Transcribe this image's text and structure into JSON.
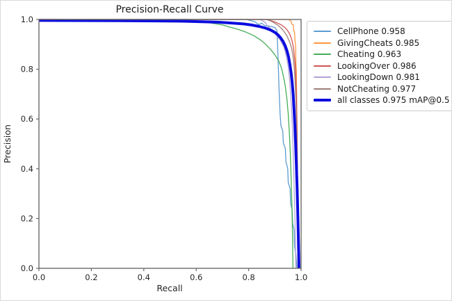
{
  "figure": {
    "background": "#ffffff",
    "frame_color": "#6a6a6a"
  },
  "chart_data": {
    "type": "line",
    "title": "Precision-Recall Curve",
    "xlabel": "Recall",
    "ylabel": "Precision",
    "xlim": [
      0.0,
      1.0
    ],
    "ylim": [
      0.0,
      1.0
    ],
    "xticks": [
      "0.0",
      "0.2",
      "0.4",
      "0.6",
      "0.8",
      "1.0"
    ],
    "yticks": [
      "0.0",
      "0.2",
      "0.4",
      "0.6",
      "0.8",
      "1.0"
    ],
    "grid": false,
    "legend_position": "outside upper right",
    "series": [
      {
        "name": "CellPhone 0.958",
        "color": "#5b9bd0",
        "lw": 1.3,
        "points": [
          [
            0,
            1
          ],
          [
            0.79,
            1
          ],
          [
            0.81,
            0.995
          ],
          [
            0.825,
            0.99
          ],
          [
            0.838,
            0.979
          ],
          [
            0.85,
            0.985
          ],
          [
            0.862,
            0.975
          ],
          [
            0.88,
            0.973
          ],
          [
            0.9,
            0.968
          ],
          [
            0.908,
            0.955
          ],
          [
            0.912,
            0.85
          ],
          [
            0.916,
            0.72
          ],
          [
            0.92,
            0.62
          ],
          [
            0.923,
            0.573
          ],
          [
            0.93,
            0.552
          ],
          [
            0.932,
            0.505
          ],
          [
            0.94,
            0.48
          ],
          [
            0.942,
            0.43
          ],
          [
            0.949,
            0.4
          ],
          [
            0.951,
            0.345
          ],
          [
            0.958,
            0.32
          ],
          [
            0.96,
            0.26
          ],
          [
            0.966,
            0.235
          ],
          [
            0.968,
            0.18
          ],
          [
            0.973,
            0.155
          ],
          [
            0.975,
            0.09
          ],
          [
            0.98,
            0.055
          ],
          [
            0.984,
            0
          ]
        ]
      },
      {
        "name": "GivingCheats 0.985",
        "color": "#ff9740",
        "lw": 1.3,
        "points": [
          [
            0,
            1
          ],
          [
            0.952,
            1
          ],
          [
            0.956,
            0.997
          ],
          [
            0.962,
            0.993
          ],
          [
            0.964,
            0.982
          ],
          [
            0.97,
            0.978
          ],
          [
            0.972,
            0.955
          ],
          [
            0.975,
            0.948
          ],
          [
            0.977,
            0.91
          ],
          [
            0.979,
            0.897
          ],
          [
            0.98,
            0.83
          ],
          [
            0.982,
            0.79
          ],
          [
            0.983,
            0.7
          ],
          [
            0.984,
            0.6
          ],
          [
            0.985,
            0.48
          ],
          [
            0.986,
            0.35
          ],
          [
            0.987,
            0.22
          ],
          [
            0.9875,
            0.13
          ],
          [
            0.988,
            0
          ]
        ]
      },
      {
        "name": "Cheating 0.963",
        "color": "#44ad57",
        "lw": 1.3,
        "points": [
          [
            0,
            1
          ],
          [
            0.54,
            1
          ],
          [
            0.58,
            0.996
          ],
          [
            0.62,
            0.991
          ],
          [
            0.66,
            0.985
          ],
          [
            0.7,
            0.978
          ],
          [
            0.73,
            0.969
          ],
          [
            0.76,
            0.96
          ],
          [
            0.79,
            0.949
          ],
          [
            0.82,
            0.935
          ],
          [
            0.845,
            0.918
          ],
          [
            0.865,
            0.9
          ],
          [
            0.885,
            0.878
          ],
          [
            0.9,
            0.858
          ],
          [
            0.915,
            0.832
          ],
          [
            0.925,
            0.805
          ],
          [
            0.933,
            0.77
          ],
          [
            0.94,
            0.73
          ],
          [
            0.946,
            0.68
          ],
          [
            0.951,
            0.62
          ],
          [
            0.955,
            0.55
          ],
          [
            0.959,
            0.46
          ],
          [
            0.962,
            0.36
          ],
          [
            0.965,
            0.25
          ],
          [
            0.967,
            0.14
          ],
          [
            0.969,
            0
          ]
        ]
      },
      {
        "name": "LookingOver 0.986",
        "color": "#d25252",
        "lw": 1.3,
        "points": [
          [
            0,
            1
          ],
          [
            0.872,
            1
          ],
          [
            0.882,
            0.996
          ],
          [
            0.895,
            0.992
          ],
          [
            0.905,
            0.988
          ],
          [
            0.915,
            0.983
          ],
          [
            0.925,
            0.978
          ],
          [
            0.934,
            0.971
          ],
          [
            0.941,
            0.965
          ],
          [
            0.948,
            0.956
          ],
          [
            0.953,
            0.948
          ],
          [
            0.958,
            0.938
          ],
          [
            0.962,
            0.926
          ],
          [
            0.966,
            0.912
          ],
          [
            0.97,
            0.893
          ],
          [
            0.973,
            0.868
          ],
          [
            0.976,
            0.835
          ],
          [
            0.979,
            0.79
          ],
          [
            0.981,
            0.73
          ],
          [
            0.983,
            0.65
          ],
          [
            0.985,
            0.54
          ],
          [
            0.986,
            0.42
          ],
          [
            0.987,
            0.29
          ],
          [
            0.988,
            0.15
          ],
          [
            0.989,
            0
          ]
        ]
      },
      {
        "name": "LookingDown 0.981",
        "color": "#b3a2d8",
        "lw": 1.3,
        "points": [
          [
            0,
            1
          ],
          [
            0.845,
            1
          ],
          [
            0.855,
            0.993
          ],
          [
            0.865,
            0.987
          ],
          [
            0.872,
            0.972
          ],
          [
            0.882,
            0.965
          ],
          [
            0.89,
            0.953
          ],
          [
            0.9,
            0.945
          ],
          [
            0.908,
            0.932
          ],
          [
            0.918,
            0.922
          ],
          [
            0.926,
            0.905
          ],
          [
            0.934,
            0.89
          ],
          [
            0.94,
            0.868
          ],
          [
            0.946,
            0.84
          ],
          [
            0.951,
            0.81
          ],
          [
            0.955,
            0.77
          ],
          [
            0.959,
            0.72
          ],
          [
            0.963,
            0.65
          ],
          [
            0.967,
            0.56
          ],
          [
            0.97,
            0.46
          ],
          [
            0.973,
            0.35
          ],
          [
            0.976,
            0.23
          ],
          [
            0.978,
            0.11
          ],
          [
            0.98,
            0
          ]
        ]
      },
      {
        "name": "NotCheating 0.977",
        "color": "#9e7f77",
        "lw": 1.3,
        "points": [
          [
            0,
            1
          ],
          [
            0.868,
            1
          ],
          [
            0.878,
            0.996
          ],
          [
            0.89,
            0.991
          ],
          [
            0.9,
            0.985
          ],
          [
            0.91,
            0.978
          ],
          [
            0.92,
            0.969
          ],
          [
            0.93,
            0.958
          ],
          [
            0.938,
            0.947
          ],
          [
            0.946,
            0.934
          ],
          [
            0.952,
            0.92
          ],
          [
            0.958,
            0.905
          ],
          [
            0.963,
            0.887
          ],
          [
            0.968,
            0.862
          ],
          [
            0.972,
            0.83
          ],
          [
            0.975,
            0.79
          ],
          [
            0.978,
            0.735
          ],
          [
            0.981,
            0.66
          ],
          [
            0.983,
            0.565
          ],
          [
            0.985,
            0.45
          ],
          [
            0.9865,
            0.32
          ],
          [
            0.9875,
            0.18
          ],
          [
            0.988,
            0
          ]
        ]
      },
      {
        "name": "all classes 0.975 mAP@0.5",
        "color": "#0b0bdf",
        "lw": 4,
        "points": [
          [
            0,
            0.996
          ],
          [
            0.3,
            0.995
          ],
          [
            0.45,
            0.994
          ],
          [
            0.55,
            0.993
          ],
          [
            0.62,
            0.991
          ],
          [
            0.68,
            0.989
          ],
          [
            0.73,
            0.986
          ],
          [
            0.78,
            0.982
          ],
          [
            0.81,
            0.978
          ],
          [
            0.84,
            0.972
          ],
          [
            0.865,
            0.965
          ],
          [
            0.885,
            0.957
          ],
          [
            0.9,
            0.948
          ],
          [
            0.912,
            0.938
          ],
          [
            0.922,
            0.926
          ],
          [
            0.931,
            0.912
          ],
          [
            0.939,
            0.895
          ],
          [
            0.946,
            0.875
          ],
          [
            0.952,
            0.85
          ],
          [
            0.957,
            0.82
          ],
          [
            0.962,
            0.785
          ],
          [
            0.966,
            0.745
          ],
          [
            0.97,
            0.695
          ],
          [
            0.973,
            0.64
          ],
          [
            0.976,
            0.575
          ],
          [
            0.979,
            0.5
          ],
          [
            0.982,
            0.415
          ],
          [
            0.985,
            0.32
          ],
          [
            0.987,
            0.235
          ],
          [
            0.989,
            0.145
          ],
          [
            0.991,
            0.055
          ],
          [
            0.992,
            0
          ]
        ]
      }
    ]
  }
}
